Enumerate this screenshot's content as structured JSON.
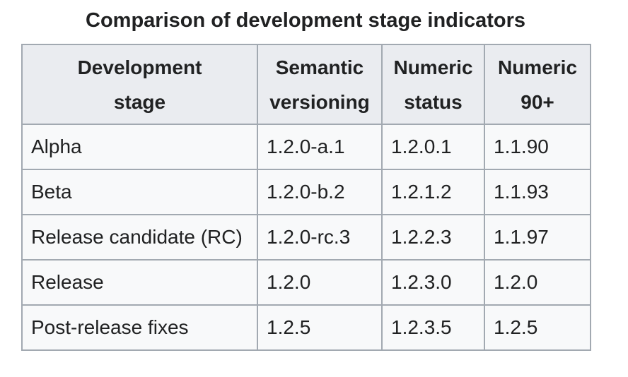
{
  "title": "Comparison of development stage indicators",
  "colors": {
    "border": "#a2a9b1",
    "header_bg": "#eaecf0",
    "row_bg": "#f8f9fa",
    "text": "#202122",
    "page_bg": "#ffffff"
  },
  "table": {
    "headers": [
      {
        "line1": "Development",
        "line2": "stage"
      },
      {
        "line1": "Semantic",
        "line2": "versioning"
      },
      {
        "line1": "Numeric",
        "line2": "status"
      },
      {
        "line1": "Numeric",
        "line2": "90+"
      }
    ],
    "rows": [
      {
        "stage": "Alpha",
        "semantic_versioning": "1.2.0-a.1",
        "numeric_status": "1.2.0.1",
        "numeric_90plus": "1.1.90"
      },
      {
        "stage": "Beta",
        "semantic_versioning": "1.2.0-b.2",
        "numeric_status": "1.2.1.2",
        "numeric_90plus": "1.1.93"
      },
      {
        "stage": "Release candidate (RC)",
        "semantic_versioning": "1.2.0-rc.3",
        "numeric_status": "1.2.2.3",
        "numeric_90plus": "1.1.97"
      },
      {
        "stage": "Release",
        "semantic_versioning": "1.2.0",
        "numeric_status": "1.2.3.0",
        "numeric_90plus": "1.2.0"
      },
      {
        "stage": "Post-release fixes",
        "semantic_versioning": "1.2.5",
        "numeric_status": "1.2.3.5",
        "numeric_90plus": "1.2.5"
      }
    ]
  }
}
